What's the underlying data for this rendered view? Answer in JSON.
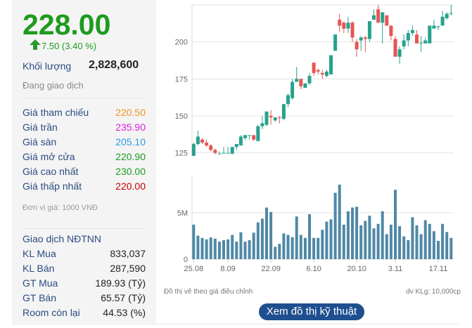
{
  "quote": {
    "price": "228.00",
    "change": "7.50 (3.40 %)",
    "volume_label": "Khối lượng",
    "volume": "2,828,600",
    "status": "Đang giao dịch",
    "rows": [
      {
        "label": "Giá tham chiếu",
        "value": "220.50",
        "color": "#f0931e"
      },
      {
        "label": "Giá trần",
        "value": "235.90",
        "color": "#e01fd8"
      },
      {
        "label": "Giá sàn",
        "value": "205.10",
        "color": "#2d9be0"
      },
      {
        "label": "Giá mở cửa",
        "value": "220.90",
        "color": "#1e9b1e"
      },
      {
        "label": "Giá cao nhất",
        "value": "230.00",
        "color": "#1e9b1e"
      },
      {
        "label": "Giá thấp nhất",
        "value": "220.00",
        "color": "#c40000"
      }
    ],
    "unit": "Đơn vị giá: 1000 VNĐ"
  },
  "foreign": {
    "title": "Giao dịch NĐTNN",
    "rows": [
      {
        "label": "KL Mua",
        "value": "833,037"
      },
      {
        "label": "KL Bán",
        "value": "287,590"
      },
      {
        "label": "GT Mua",
        "value": "189.93 (Tỷ)"
      },
      {
        "label": "GT Bán",
        "value": "65.57 (Tỷ)"
      },
      {
        "label": "Room còn lại",
        "value": "44.53 (%)"
      }
    ]
  },
  "chart_note": "Đồ thị vẽ theo giá điều chỉnh",
  "volume_unit": "dv KLg: 10,000cp",
  "tech_button": "Xem đồ thị kỹ thuật",
  "chart_data": {
    "type": "candlestick",
    "colors": {
      "up": "#26a28e",
      "down": "#e65555",
      "volume": "#4f88a6"
    },
    "price_axis": {
      "ticks": [
        125,
        150,
        175,
        200
      ],
      "range": [
        122,
        225
      ]
    },
    "volume_axis": {
      "ticks": [
        {
          "v": 0,
          "label": "0"
        },
        {
          "v": 5,
          "label": "5M"
        }
      ],
      "range": [
        0,
        9
      ]
    },
    "x_labels": [
      {
        "i": 0,
        "label": "25.08"
      },
      {
        "i": 8,
        "label": "8.09"
      },
      {
        "i": 18,
        "label": "22.09"
      },
      {
        "i": 28,
        "label": "6.10"
      },
      {
        "i": 38,
        "label": "20.10"
      },
      {
        "i": 47,
        "label": "3.11"
      },
      {
        "i": 57,
        "label": "17.11"
      }
    ],
    "ohlc": [
      [
        123,
        132,
        123,
        131
      ],
      [
        131,
        140,
        130,
        136
      ],
      [
        134,
        135,
        131,
        132
      ],
      [
        132,
        134,
        129,
        130
      ],
      [
        130,
        131,
        126,
        127
      ],
      [
        127,
        128,
        124,
        125
      ],
      [
        124.5,
        126,
        124,
        124.5
      ],
      [
        125,
        129,
        125,
        125
      ],
      [
        125,
        129,
        125,
        125
      ],
      [
        124.5,
        129,
        124,
        129
      ],
      [
        129,
        131,
        127,
        131
      ],
      [
        130,
        137,
        130,
        136
      ],
      [
        135,
        137,
        134,
        137
      ],
      [
        137,
        137,
        134,
        137
      ],
      [
        137,
        137,
        133,
        134
      ],
      [
        133,
        144,
        133,
        143
      ],
      [
        143,
        150,
        141,
        145
      ],
      [
        144,
        153,
        143,
        153
      ],
      [
        150,
        154,
        144,
        149
      ],
      [
        147,
        149,
        146,
        149
      ],
      [
        149,
        150,
        145,
        148.5
      ],
      [
        148,
        158,
        147,
        158
      ],
      [
        158,
        165,
        156,
        164
      ],
      [
        162,
        175,
        161,
        173
      ],
      [
        173,
        183,
        173,
        175
      ],
      [
        175,
        175,
        168,
        170
      ],
      [
        169,
        172,
        169,
        172
      ],
      [
        172,
        179,
        171,
        177
      ],
      [
        186,
        186,
        177,
        179
      ],
      [
        181,
        182,
        178,
        180
      ],
      [
        179,
        181,
        175,
        178
      ],
      [
        177,
        181,
        176,
        180
      ],
      [
        178,
        191,
        178,
        191
      ],
      [
        194,
        205,
        194,
        205
      ],
      [
        215,
        219,
        207,
        211
      ],
      [
        213,
        214,
        206,
        209
      ],
      [
        209,
        217,
        206,
        213
      ],
      [
        213,
        214,
        200,
        203
      ],
      [
        200,
        202,
        190,
        195
      ],
      [
        201,
        204,
        194,
        203
      ],
      [
        203,
        204,
        193,
        202
      ],
      [
        202,
        214,
        200,
        214
      ],
      [
        215,
        222,
        215,
        218
      ],
      [
        222,
        225,
        213,
        213
      ],
      [
        213,
        220,
        199,
        220
      ],
      [
        218,
        218,
        211,
        211
      ],
      [
        211,
        211,
        201,
        204
      ],
      [
        202,
        204,
        190,
        190
      ],
      [
        190,
        197,
        185,
        195
      ],
      [
        197,
        205,
        195,
        201
      ],
      [
        201,
        208,
        197,
        206
      ],
      [
        206,
        211,
        204,
        208
      ],
      [
        205,
        208,
        199,
        199
      ],
      [
        199,
        204,
        193,
        199.5
      ],
      [
        199,
        203,
        199,
        201
      ],
      [
        199,
        211,
        199,
        211
      ],
      [
        209,
        215,
        209,
        211
      ],
      [
        210,
        211,
        208,
        210.5
      ],
      [
        211,
        221,
        211,
        217
      ],
      [
        216,
        220,
        215,
        219
      ],
      [
        219,
        225,
        218,
        219.5
      ]
    ],
    "volume_m": [
      3.72,
      2.53,
      2.29,
      2.13,
      2.34,
      2.21,
      1.89,
      2.05,
      2.13,
      2.61,
      1.89,
      2.9,
      1.89,
      2.05,
      2.85,
      3.96,
      4.36,
      5.56,
      5.08,
      1.33,
      1.65,
      2.77,
      2.61,
      2.37,
      4.6,
      2.61,
      2.29,
      4.84,
      2.29,
      2.29,
      3.16,
      4.04,
      4.28,
      7.15,
      8.03,
      3.72,
      5.16,
      5.56,
      5.64,
      3.64,
      4.12,
      4.68,
      3.32,
      3.8,
      5.16,
      2.69,
      3.72,
      7.47,
      3.56,
      2.45,
      2.05,
      4.52,
      3.64,
      2.69,
      4.2,
      3.8,
      3.01,
      1.97,
      3.8,
      2.93,
      2.29
    ]
  }
}
